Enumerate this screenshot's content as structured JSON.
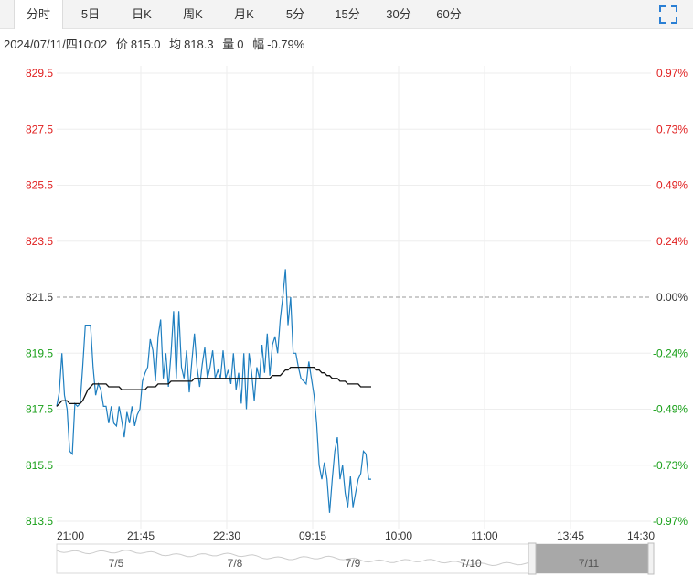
{
  "tabs": [
    "分时",
    "5日",
    "日K",
    "周K",
    "月K",
    "5分",
    "15分",
    "30分",
    "60分"
  ],
  "active_tab": 0,
  "info": {
    "datetime": "2024/07/11/四10:02",
    "price_label": "价",
    "price": "815.0",
    "avg_label": "均",
    "avg": "818.3",
    "volume_label": "量",
    "volume": "0",
    "change_label": "幅",
    "change": "-0.79%"
  },
  "colors": {
    "up": "#e02020",
    "down": "#1aa01a",
    "price_line": "#1f7fc0",
    "avg_line": "#111111"
  },
  "chart_data": {
    "type": "line",
    "ylim": [
      813.5,
      829.5
    ],
    "y_ticks": [
      "829.5",
      "827.5",
      "825.5",
      "823.5",
      "821.5",
      "819.5",
      "817.5",
      "815.5",
      "813.5"
    ],
    "pct_ticks": [
      "0.97%",
      "0.73%",
      "0.49%",
      "0.24%",
      "0.00%",
      "-0.24%",
      "-0.49%",
      "-0.73%",
      "-0.97%"
    ],
    "x_ticks": [
      "21:00",
      "21:45",
      "22:30",
      "09:15",
      "10:00",
      "11:00",
      "13:45",
      "14:30"
    ],
    "reference": 821.5,
    "series": [
      {
        "values": [
          817.6,
          818.1,
          819.5,
          818.0,
          817.5,
          816.0,
          815.9,
          817.7,
          817.6,
          817.7,
          819.0,
          820.5,
          820.5,
          820.5,
          819.0,
          818.0,
          818.4,
          818.2,
          817.6,
          817.6,
          817.0,
          817.6,
          817.0,
          816.9,
          817.6,
          817.1,
          816.5,
          817.4,
          817.0,
          817.6,
          816.9,
          817.3,
          817.5,
          818.5,
          818.8,
          819.0,
          820.0,
          819.6,
          818.5,
          820.1,
          820.7,
          818.6,
          819.5,
          818.3,
          819.5,
          821.0,
          818.6,
          821.0,
          819.0,
          818.6,
          819.6,
          818.1,
          819.2,
          820.2,
          819.0,
          818.3,
          819.1,
          819.7,
          818.6,
          819.0,
          819.6,
          818.6,
          818.9,
          818.6,
          819.6,
          818.6,
          818.9,
          818.4,
          819.5,
          818.2,
          818.8,
          817.7,
          819.5,
          817.5,
          819.5,
          818.8,
          817.8,
          819.0,
          818.6,
          819.8,
          818.8,
          820.2,
          818.7,
          819.8,
          820.1,
          819.5,
          820.7,
          821.5,
          822.5,
          820.5,
          821.5,
          819.5,
          819.5,
          819.0,
          818.6,
          818.5,
          818.4,
          819.2,
          818.6,
          818.0,
          817.0,
          815.5,
          815.0,
          815.6,
          815.0,
          813.8,
          815.0,
          816.0,
          816.5,
          815.0,
          815.5,
          814.5,
          814.0,
          815.1,
          814.0,
          814.5,
          815.0,
          815.2,
          816.0,
          815.9,
          815.0,
          815.0
        ]
      },
      {
        "values": [
          817.6,
          817.7,
          817.8,
          817.8,
          817.8,
          817.7,
          817.7,
          817.7,
          817.7,
          817.7,
          817.8,
          818.0,
          818.2,
          818.3,
          818.4,
          818.4,
          818.4,
          818.4,
          818.4,
          818.4,
          818.3,
          818.3,
          818.3,
          818.3,
          818.3,
          818.2,
          818.2,
          818.2,
          818.2,
          818.2,
          818.2,
          818.2,
          818.2,
          818.2,
          818.2,
          818.3,
          818.3,
          818.3,
          818.3,
          818.4,
          818.4,
          818.4,
          818.4,
          818.4,
          818.5,
          818.5,
          818.5,
          818.5,
          818.5,
          818.5,
          818.5,
          818.5,
          818.5,
          818.6,
          818.6,
          818.6,
          818.6,
          818.6,
          818.6,
          818.6,
          818.6,
          818.6,
          818.6,
          818.6,
          818.6,
          818.6,
          818.6,
          818.6,
          818.6,
          818.6,
          818.6,
          818.6,
          818.6,
          818.6,
          818.6,
          818.6,
          818.6,
          818.6,
          818.6,
          818.6,
          818.6,
          818.6,
          818.6,
          818.7,
          818.7,
          818.7,
          818.7,
          818.8,
          818.9,
          818.9,
          819.0,
          819.0,
          819.0,
          819.0,
          819.0,
          819.0,
          819.0,
          819.0,
          819.0,
          819.0,
          818.9,
          818.9,
          818.8,
          818.8,
          818.7,
          818.7,
          818.6,
          818.6,
          818.6,
          818.5,
          818.5,
          818.5,
          818.4,
          818.4,
          818.4,
          818.4,
          818.4,
          818.3,
          818.3,
          818.3,
          818.3,
          818.3
        ]
      }
    ],
    "navigator": {
      "labels": [
        "7/5",
        "7/8",
        "7/9",
        "7/10",
        "7/11"
      ]
    }
  }
}
